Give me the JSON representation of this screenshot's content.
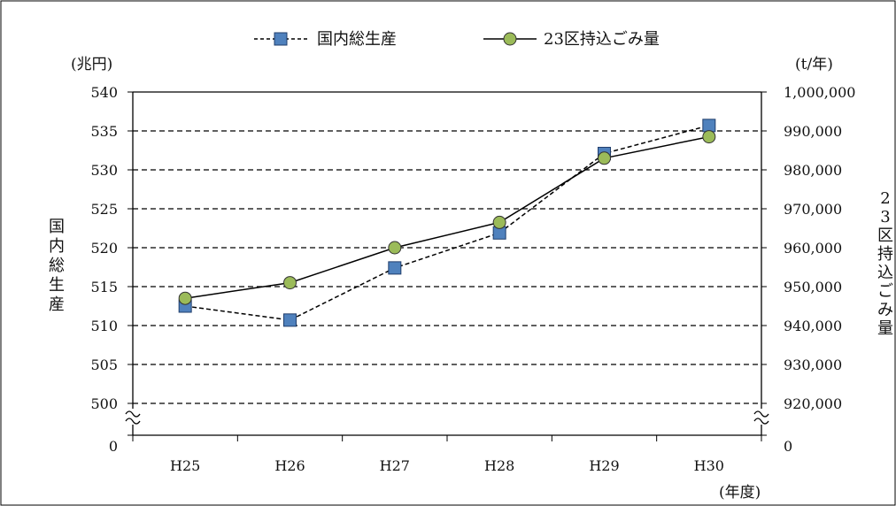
{
  "chart_data": {
    "type": "line",
    "categories": [
      "H25",
      "H26",
      "H27",
      "H28",
      "H29",
      "H30"
    ],
    "series": [
      {
        "name": "国内総生産",
        "axis": "left",
        "style": "dashed",
        "marker": "square",
        "color": "#4f81bd",
        "values": [
          512.5,
          510.7,
          517.4,
          521.9,
          532.1,
          535.7
        ]
      },
      {
        "name": "23区持込ごみ量",
        "axis": "right",
        "style": "solid",
        "marker": "circle",
        "color": "#9bbb59",
        "values": [
          947000,
          951000,
          960000,
          966500,
          983000,
          988500
        ]
      }
    ],
    "left_axis": {
      "unit": "(兆円)",
      "label": "国内総生産",
      "range": [
        500,
        540
      ],
      "ticks": [
        "540",
        "535",
        "530",
        "525",
        "520",
        "515",
        "510",
        "505",
        "500"
      ],
      "zero_label": "0"
    },
    "right_axis": {
      "unit": "(t/年)",
      "label": "23区持込ごみ量",
      "range": [
        920000,
        1000000
      ],
      "ticks": [
        "1,000,000",
        "990,000",
        "980,000",
        "970,000",
        "960,000",
        "950,000",
        "940,000",
        "930,000",
        "920,000"
      ],
      "zero_label": "0"
    },
    "x_unit": "(年度)",
    "grid": "dashed-horizontal",
    "legend_position": "top"
  }
}
